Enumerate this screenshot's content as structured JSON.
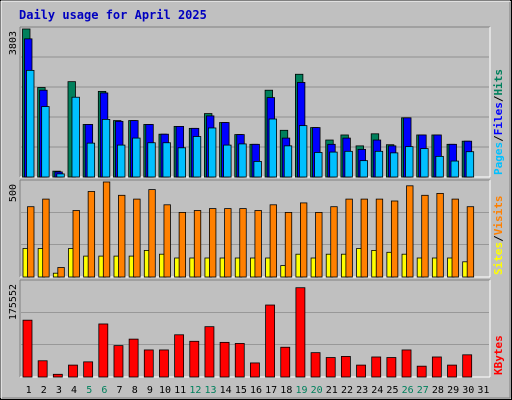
{
  "title": "Daily usage for April 2025",
  "colors": {
    "background": "#c0c0c0",
    "panel": "#c0c0c0",
    "title": "#0000c0",
    "hits": "#00805c",
    "files": "#0000ff",
    "pages": "#00c0ff",
    "visits": "#ff8000",
    "sites": "#ffff00",
    "kbytes": "#ff0000",
    "weekend_day_label": "#00805c"
  },
  "chart_data": [
    {
      "type": "bar",
      "panel": "hits-files-pages",
      "max_label": "3803",
      "legend": [
        {
          "key": "pages",
          "label": "Pages",
          "sep": "/"
        },
        {
          "key": "files",
          "label": "Files",
          "sep": "/"
        },
        {
          "key": "hits",
          "label": "Hits",
          "sep": ""
        }
      ],
      "categories": [
        "1",
        "2",
        "3",
        "4",
        "5",
        "6",
        "7",
        "8",
        "9",
        "10",
        "11",
        "12",
        "13",
        "14",
        "15",
        "16",
        "17",
        "18",
        "19",
        "20",
        "21",
        "22",
        "23",
        "24",
        "25",
        "26",
        "27",
        "28",
        "29",
        "30",
        "31"
      ],
      "ylim": [
        0,
        3803
      ],
      "series": [
        {
          "name": "Hits",
          "values": [
            3803,
            2300,
            150,
            2450,
            1350,
            2200,
            1450,
            1450,
            1350,
            1100,
            1300,
            1250,
            1630,
            1400,
            1090,
            840,
            2230,
            1200,
            2640,
            1270,
            950,
            1080,
            800,
            1110,
            830,
            1520,
            1080,
            1080,
            840,
            920,
            0
          ]
        },
        {
          "name": "Files",
          "values": [
            3550,
            2230,
            130,
            0,
            1350,
            2160,
            1430,
            1450,
            1350,
            1100,
            1300,
            1250,
            1570,
            1400,
            1090,
            840,
            2040,
            1000,
            2430,
            1270,
            840,
            1000,
            710,
            950,
            800,
            1520,
            1080,
            1080,
            840,
            920,
            0
          ]
        },
        {
          "name": "Pages",
          "values": [
            2740,
            1810,
            80,
            2050,
            870,
            1480,
            820,
            1000,
            880,
            880,
            750,
            1040,
            1260,
            820,
            850,
            400,
            1490,
            800,
            1320,
            630,
            640,
            660,
            420,
            660,
            620,
            780,
            730,
            530,
            410,
            650,
            0
          ]
        }
      ]
    },
    {
      "type": "bar",
      "panel": "visits-sites",
      "max_label": "500",
      "legend": [
        {
          "key": "sites",
          "label": "Sites",
          "sep": "/"
        },
        {
          "key": "visits",
          "label": "Visits",
          "sep": ""
        }
      ],
      "ylim": [
        0,
        500
      ],
      "series": [
        {
          "name": "Visits",
          "values": [
            370,
            410,
            50,
            350,
            450,
            500,
            430,
            410,
            460,
            380,
            340,
            350,
            360,
            360,
            360,
            350,
            380,
            340,
            390,
            340,
            370,
            410,
            410,
            410,
            400,
            480,
            430,
            440,
            410,
            370,
            0
          ]
        },
        {
          "name": "Sites",
          "values": [
            150,
            150,
            20,
            150,
            110,
            110,
            110,
            110,
            140,
            120,
            100,
            100,
            100,
            100,
            100,
            100,
            100,
            60,
            120,
            100,
            120,
            120,
            150,
            140,
            130,
            120,
            100,
            100,
            100,
            80,
            0
          ]
        }
      ]
    },
    {
      "type": "bar",
      "panel": "kbytes",
      "max_label": "175552",
      "legend": [
        {
          "key": "kbytes",
          "label": "KBytes",
          "sep": ""
        }
      ],
      "ylim": [
        0,
        175552
      ],
      "series": [
        {
          "name": "KBytes",
          "values": [
            105000,
            30000,
            5000,
            22000,
            28000,
            98000,
            58000,
            70000,
            50000,
            50000,
            78000,
            66000,
            93000,
            64000,
            62000,
            26000,
            133000,
            55000,
            165000,
            45000,
            36000,
            38000,
            22000,
            37000,
            36000,
            50000,
            20000,
            37000,
            22000,
            41000,
            0
          ]
        }
      ]
    }
  ],
  "x_labels": [
    {
      "text": "1",
      "weekend": false
    },
    {
      "text": "2",
      "weekend": false
    },
    {
      "text": "3",
      "weekend": false
    },
    {
      "text": "4",
      "weekend": false
    },
    {
      "text": "5",
      "weekend": true
    },
    {
      "text": "6",
      "weekend": true
    },
    {
      "text": "7",
      "weekend": false
    },
    {
      "text": "8",
      "weekend": false
    },
    {
      "text": "9",
      "weekend": false
    },
    {
      "text": "10",
      "weekend": false
    },
    {
      "text": "11",
      "weekend": false
    },
    {
      "text": "12",
      "weekend": true
    },
    {
      "text": "13",
      "weekend": true
    },
    {
      "text": "14",
      "weekend": false
    },
    {
      "text": "15",
      "weekend": false
    },
    {
      "text": "16",
      "weekend": false
    },
    {
      "text": "17",
      "weekend": false
    },
    {
      "text": "18",
      "weekend": false
    },
    {
      "text": "19",
      "weekend": true
    },
    {
      "text": "20",
      "weekend": true
    },
    {
      "text": "21",
      "weekend": false
    },
    {
      "text": "22",
      "weekend": false
    },
    {
      "text": "23",
      "weekend": false
    },
    {
      "text": "24",
      "weekend": false
    },
    {
      "text": "25",
      "weekend": false
    },
    {
      "text": "26",
      "weekend": true
    },
    {
      "text": "27",
      "weekend": true
    },
    {
      "text": "28",
      "weekend": false
    },
    {
      "text": "29",
      "weekend": false
    },
    {
      "text": "30",
      "weekend": false
    },
    {
      "text": "31",
      "weekend": false
    }
  ]
}
